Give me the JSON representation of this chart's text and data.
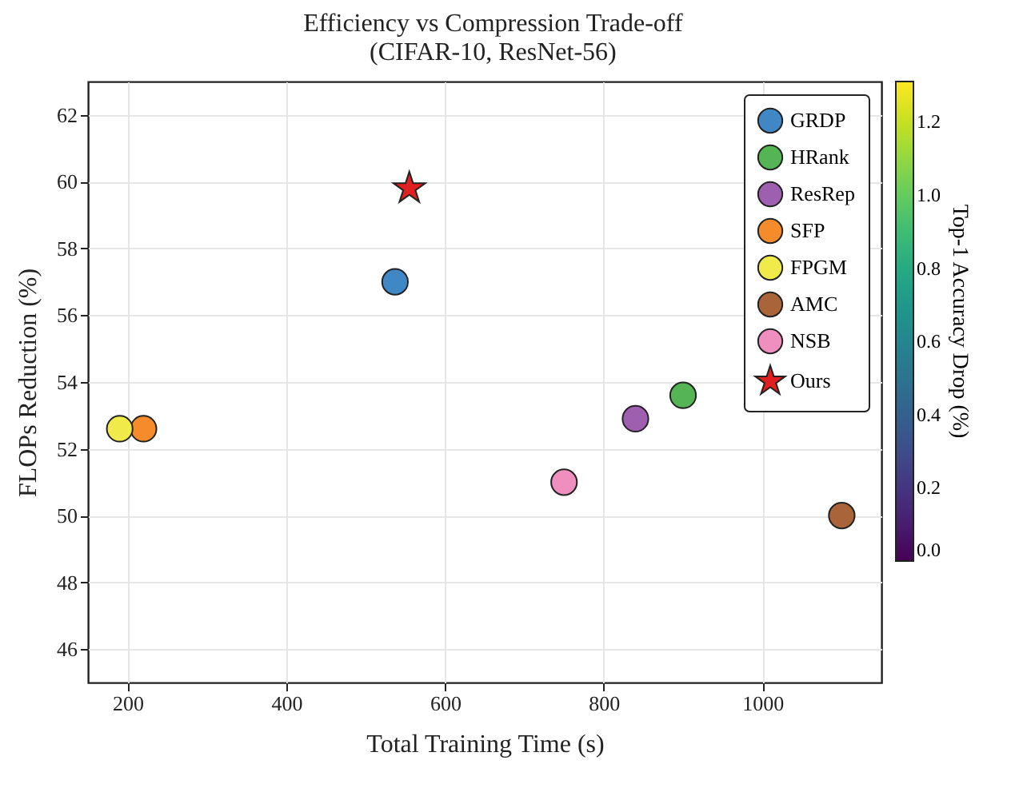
{
  "chart_data": {
    "type": "scatter",
    "title": "Efficiency vs Compression Trade-off",
    "subtitle": "(CIFAR-10, ResNet-56)",
    "xlabel": "Total Training Time (s)",
    "ylabel": "FLOPs Reduction (%)",
    "clabel": "Top-1 Accuracy Drop (%)",
    "xlim": [
      150,
      1150
    ],
    "xticks": [
      200,
      400,
      600,
      800,
      1000
    ],
    "ylim": [
      45,
      63
    ],
    "yticks": [
      46,
      48,
      50,
      52,
      54,
      56,
      58,
      60,
      62
    ],
    "clim": [
      0,
      1.31
    ],
    "cticks": [
      {
        "value": 0,
        "label": "0.0"
      },
      0.2,
      0.4,
      0.6,
      0.8,
      {
        "value": 1,
        "label": "1.0"
      },
      1.2
    ],
    "grid": true,
    "legend": "top right",
    "marker": "circle",
    "series": [
      {
        "name": "GRDP",
        "color": "#3f88c5",
        "x": [
          537
        ],
        "values": [
          57.0
        ]
      },
      {
        "name": "HRank",
        "color": "#55b555",
        "x": [
          900
        ],
        "values": [
          53.6
        ]
      },
      {
        "name": "ResRep",
        "color": "#9f5fb0",
        "x": [
          840
        ],
        "values": [
          52.9
        ]
      },
      {
        "name": "SFP",
        "color": "#f58b2a",
        "x": [
          220
        ],
        "values": [
          52.6
        ]
      },
      {
        "name": "FPGM",
        "color": "#f0ea4a",
        "x": [
          190
        ],
        "values": [
          52.6
        ]
      },
      {
        "name": "AMC",
        "color": "#a9643a",
        "x": [
          1100
        ],
        "values": [
          50.0
        ]
      },
      {
        "name": "NSB",
        "color": "#ee8fbf",
        "x": [
          750
        ],
        "values": [
          51.0
        ]
      },
      {
        "name": "Ours",
        "color": "#e02020",
        "x": [
          555
        ],
        "values": [
          59.8
        ],
        "marker": "star"
      }
    ]
  }
}
